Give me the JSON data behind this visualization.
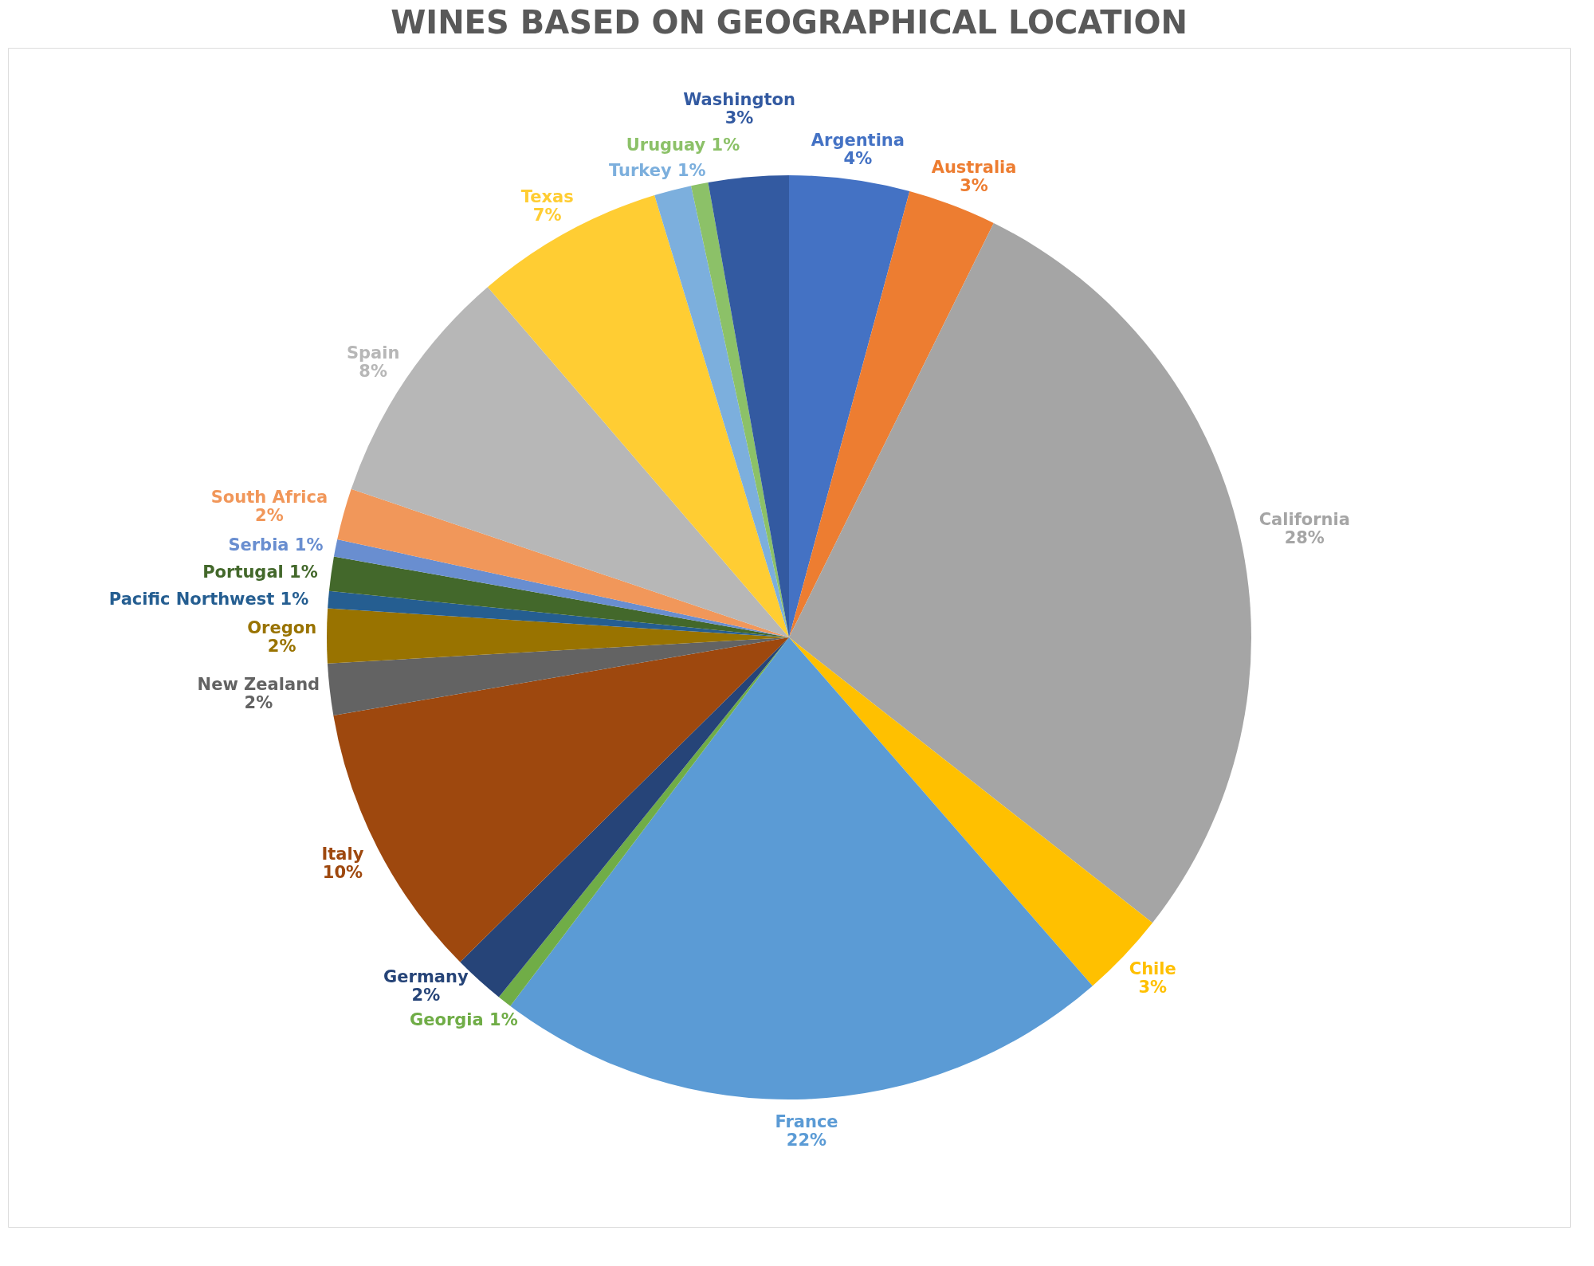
{
  "chart_data": {
    "type": "pie",
    "title": "WINES BASED ON GEOGRAPHICAL LOCATION",
    "categories": [
      "Argentina",
      "Australia",
      "California",
      "Chile",
      "France",
      "Georgia",
      "Germany",
      "Italy",
      "New Zealand",
      "Oregon",
      "Pacific Northwest",
      "Portugal",
      "Serbia",
      "South Africa",
      "Spain",
      "Texas",
      "Turkey",
      "Uruguay",
      "Washington"
    ],
    "values": [
      4.2,
      3.1,
      28.3,
      3.0,
      21.7,
      0.5,
      1.8,
      9.7,
      1.8,
      1.9,
      0.6,
      1.2,
      0.6,
      1.8,
      8.5,
      6.6,
      1.3,
      0.6,
      2.8
    ],
    "value_labels": [
      "4%",
      "3%",
      "28%",
      "3%",
      "22%",
      "1%",
      "2%",
      "10%",
      "2%",
      "2%",
      "1%",
      "1%",
      "1%",
      "2%",
      "8%",
      "7%",
      "1%",
      "1%",
      "3%"
    ],
    "colors": [
      "#4472c4",
      "#ed7d31",
      "#a5a5a5",
      "#ffc000",
      "#5b9bd5",
      "#70ad47",
      "#264478",
      "#9e480e",
      "#636363",
      "#997300",
      "#255e91",
      "#43682b",
      "#698ed0",
      "#f1975a",
      "#b7b7b7",
      "#ffcd33",
      "#7cafdd",
      "#8cc168",
      "#335aa1"
    ],
    "legend": false
  }
}
